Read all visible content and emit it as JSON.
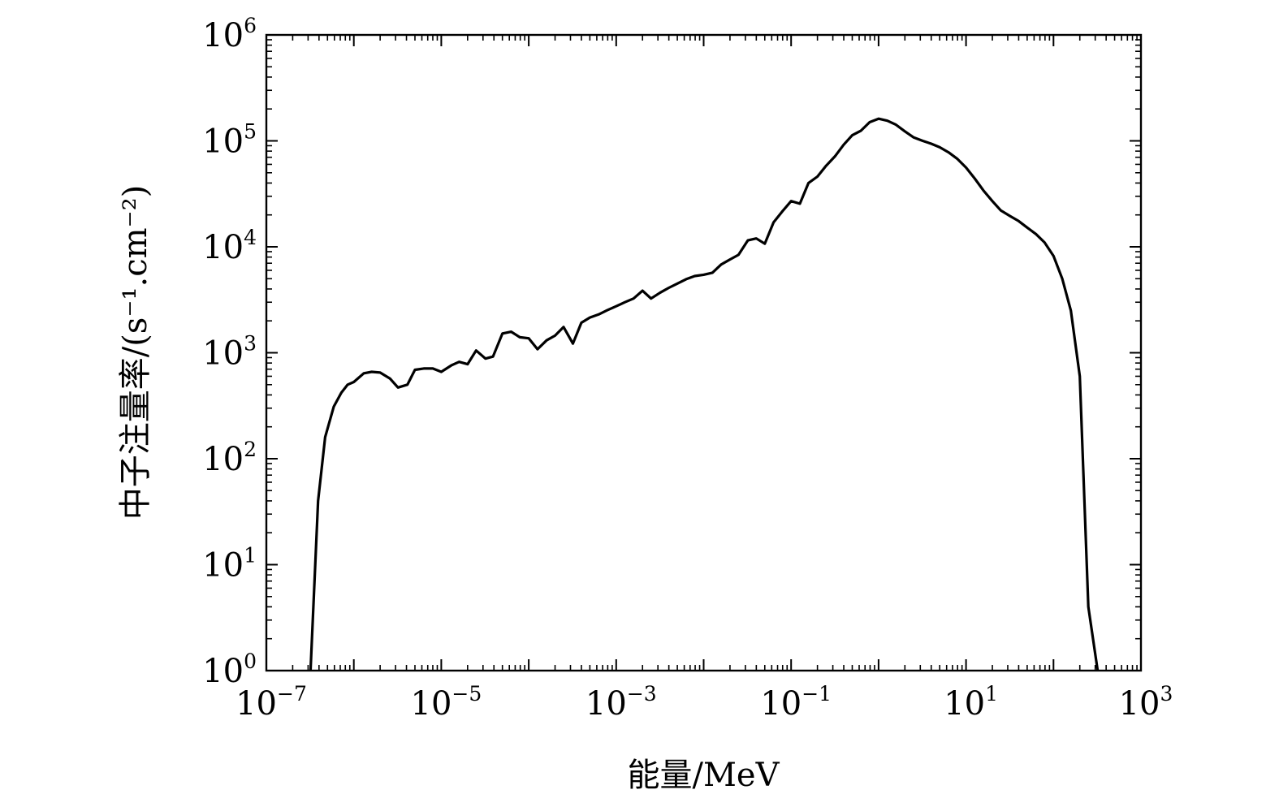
{
  "chart_data": {
    "type": "line",
    "title": "",
    "xlabel": "能量/MeV",
    "ylabel": "中子注量率/(s⁻¹.cm⁻²)",
    "x_scale": "log",
    "y_scale": "log",
    "xlim": [
      1e-07,
      1000
    ],
    "ylim": [
      1,
      1000000
    ],
    "x_ticks": [
      {
        "base": "10",
        "exp": "−7",
        "value": 1e-07
      },
      {
        "base": "10",
        "exp": "−5",
        "value": 1e-05
      },
      {
        "base": "10",
        "exp": "−3",
        "value": 0.001
      },
      {
        "base": "10",
        "exp": "−1",
        "value": 0.1
      },
      {
        "base": "10",
        "exp": "1",
        "value": 10
      },
      {
        "base": "10",
        "exp": "3",
        "value": 1000
      }
    ],
    "y_ticks": [
      {
        "base": "10",
        "exp": "0",
        "value": 1
      },
      {
        "base": "10",
        "exp": "1",
        "value": 10
      },
      {
        "base": "10",
        "exp": "2",
        "value": 100
      },
      {
        "base": "10",
        "exp": "3",
        "value": 1000
      },
      {
        "base": "10",
        "exp": "4",
        "value": 10000
      },
      {
        "base": "10",
        "exp": "5",
        "value": 100000
      },
      {
        "base": "10",
        "exp": "6",
        "value": 1000000
      }
    ],
    "grid": false,
    "legend": "none",
    "series": [
      {
        "color": "#000000",
        "x": [
          3.2e-07,
          3.9e-07,
          4.7e-07,
          5.9e-07,
          7.2e-07,
          8.5e-07,
          1e-06,
          1.3e-06,
          1.6e-06,
          2e-06,
          2.6e-06,
          3.2e-06,
          4.1e-06,
          5e-06,
          6.3e-06,
          8e-06,
          1e-05,
          1.3e-05,
          1.6e-05,
          2e-05,
          2.5e-05,
          3.2e-05,
          3.9e-05,
          5e-05,
          6.3e-05,
          7.9e-05,
          0.0001,
          0.000126,
          0.00016,
          0.0002,
          0.00025,
          0.00032,
          0.0004,
          0.0005,
          0.00063,
          0.00079,
          0.001,
          0.00126,
          0.00158,
          0.002,
          0.0025,
          0.0032,
          0.004,
          0.005,
          0.0063,
          0.0079,
          0.01,
          0.0126,
          0.0158,
          0.02,
          0.025,
          0.032,
          0.04,
          0.05,
          0.063,
          0.079,
          0.1,
          0.126,
          0.158,
          0.2,
          0.25,
          0.32,
          0.4,
          0.5,
          0.63,
          0.79,
          1.0,
          1.26,
          1.58,
          2.0,
          2.5,
          3.2,
          4.0,
          5.0,
          6.3,
          7.9,
          10,
          12.6,
          15.8,
          20,
          25,
          32,
          40,
          50,
          63,
          79,
          100,
          126,
          158,
          200,
          250,
          320
        ],
        "y": [
          1,
          40,
          160,
          310,
          420,
          500,
          530,
          640,
          660,
          650,
          570,
          470,
          500,
          690,
          710,
          710,
          660,
          760,
          820,
          780,
          1050,
          880,
          920,
          1520,
          1580,
          1400,
          1370,
          1080,
          1310,
          1450,
          1750,
          1220,
          1920,
          2150,
          2300,
          2520,
          2750,
          3000,
          3250,
          3850,
          3250,
          3700,
          4100,
          4500,
          4950,
          5300,
          5450,
          5700,
          6800,
          7600,
          8400,
          11500,
          12000,
          10700,
          17000,
          21500,
          27000,
          25500,
          40000,
          46000,
          58000,
          72000,
          92000,
          113000,
          125000,
          150000,
          162000,
          155000,
          142000,
          123000,
          108000,
          100000,
          94000,
          87000,
          78000,
          68000,
          56000,
          44000,
          34000,
          27000,
          22000,
          19500,
          17500,
          15200,
          13200,
          11000,
          8200,
          5000,
          2500,
          600,
          4,
          1
        ]
      }
    ]
  }
}
